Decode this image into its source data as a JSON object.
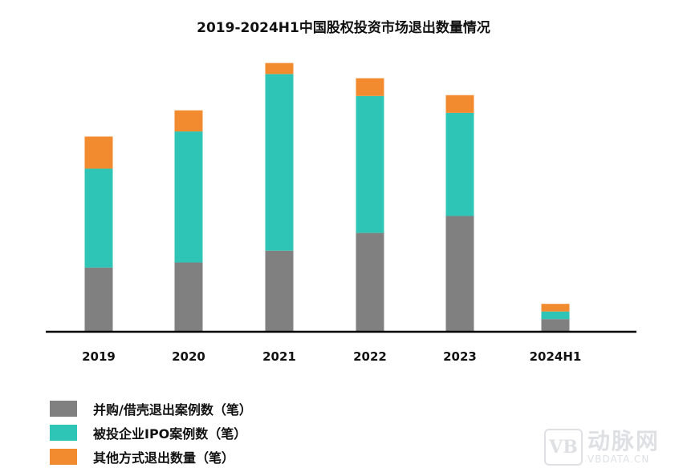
{
  "chart_data": {
    "type": "bar",
    "stacked": true,
    "title": "2019-2024H1中国股权投资市场退出数量情况",
    "categories": [
      "2019",
      "2020",
      "2021",
      "2022",
      "2023",
      "2024H1"
    ],
    "series": [
      {
        "name": "并购/借壳退出案例数（笔）",
        "color": "#808080",
        "values": [
          76,
          82,
          96,
          117,
          137,
          15
        ]
      },
      {
        "name": "被投企业IPO案例数（笔）",
        "color": "#2ec4b6",
        "values": [
          117,
          155,
          209,
          162,
          122,
          9
        ]
      },
      {
        "name": "其他方式退出数量（笔）",
        "color": "#f28a30",
        "values": [
          38,
          25,
          13,
          21,
          21,
          9
        ]
      }
    ],
    "ylim": [
      0,
      330
    ],
    "xlabel": "",
    "ylabel": "",
    "grid": false,
    "legend_position": "bottom-left"
  },
  "watermark": {
    "mark": "VB",
    "name_cn": "动脉网",
    "name_en": "VBDATA.CN"
  }
}
